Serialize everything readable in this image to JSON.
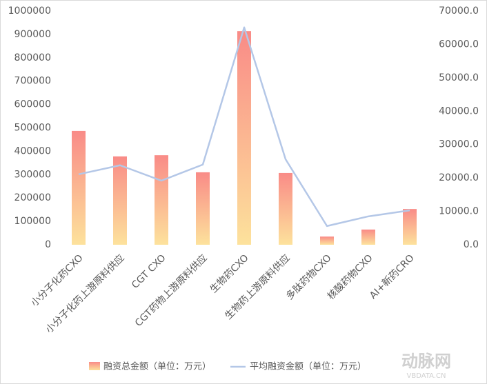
{
  "chart_data": {
    "type": "bar-line",
    "categories": [
      "小分子化药CXO",
      "小分子化药上游原料供应",
      "CGT CXO",
      "CGT药物上游原料供应",
      "生物药CXO",
      "生物药上游原料供应",
      "多肽药物CXO",
      "核酸药物CXO",
      "AI+新药CRO"
    ],
    "series": [
      {
        "name": "融资总金额（单位：万元）",
        "type": "bar",
        "color": [
          "#f98b87",
          "#fde29c"
        ],
        "values": [
          487000,
          378000,
          383000,
          310000,
          914000,
          307000,
          35000,
          65000,
          153000
        ]
      },
      {
        "name": "平均融资金额（单位：万元）",
        "type": "line",
        "axis": "y2",
        "color": "#b4c7e7",
        "values": [
          21100,
          23800,
          19200,
          24000,
          65100,
          25600,
          5600,
          8500,
          10300
        ]
      }
    ],
    "ylim": [
      0,
      1000000
    ],
    "yticks": [
      0,
      100000,
      200000,
      300000,
      400000,
      500000,
      600000,
      700000,
      800000,
      900000,
      1000000
    ],
    "y2lim": [
      0,
      70000
    ],
    "y2ticks": [
      {
        "value": 0,
        "label": "0.0"
      },
      {
        "value": 10000,
        "label": "10000.0"
      },
      {
        "value": 20000,
        "label": "20000.0"
      },
      {
        "value": 30000,
        "label": "30000.0"
      },
      {
        "value": 40000,
        "label": "40000.0"
      },
      {
        "value": 50000,
        "label": "50000.0"
      },
      {
        "value": 60000,
        "label": "60000.0"
      },
      {
        "value": 70000,
        "label": "70000.0"
      }
    ],
    "legend": "bottom",
    "watermark": [
      "动脉网",
      "VBDATA.CN"
    ]
  }
}
